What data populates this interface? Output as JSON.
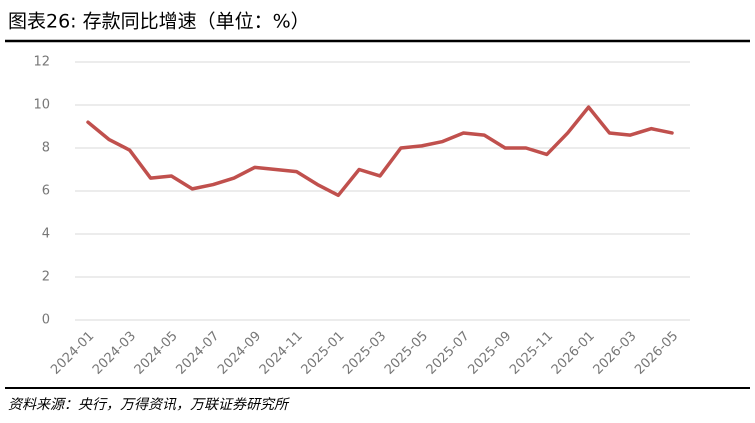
{
  "chart_data": {
    "type": "line",
    "title": "图表26:  存款同比增速（单位：%）",
    "source": "资料来源：央行，万得资讯，万联证券研究所",
    "categories": [
      "2024-01",
      null,
      "2024-03",
      null,
      "2024-05",
      null,
      "2024-07",
      null,
      "2024-09",
      null,
      "2024-11",
      null,
      "2025-01",
      null,
      "2025-03",
      null,
      "2025-05",
      null,
      "2025-07",
      null,
      "2025-09",
      null,
      "2025-11",
      null,
      "2026-01",
      null,
      "2026-03",
      null,
      "2026-05"
    ],
    "series": [
      {
        "name": "存款同比增速",
        "color": "#c0504d",
        "values": [
          9.2,
          8.4,
          7.9,
          6.6,
          6.7,
          6.1,
          6.3,
          6.6,
          7.1,
          7.0,
          6.9,
          6.3,
          5.8,
          7.0,
          6.7,
          8.0,
          8.1,
          8.3,
          8.7,
          8.6,
          8.0,
          8.0,
          7.7,
          8.7,
          9.9,
          8.7,
          8.6,
          8.9,
          8.7
        ]
      }
    ],
    "ylim": [
      0,
      12
    ],
    "yticks": [
      0,
      2,
      4,
      6,
      8,
      10,
      12
    ],
    "grid": true
  }
}
